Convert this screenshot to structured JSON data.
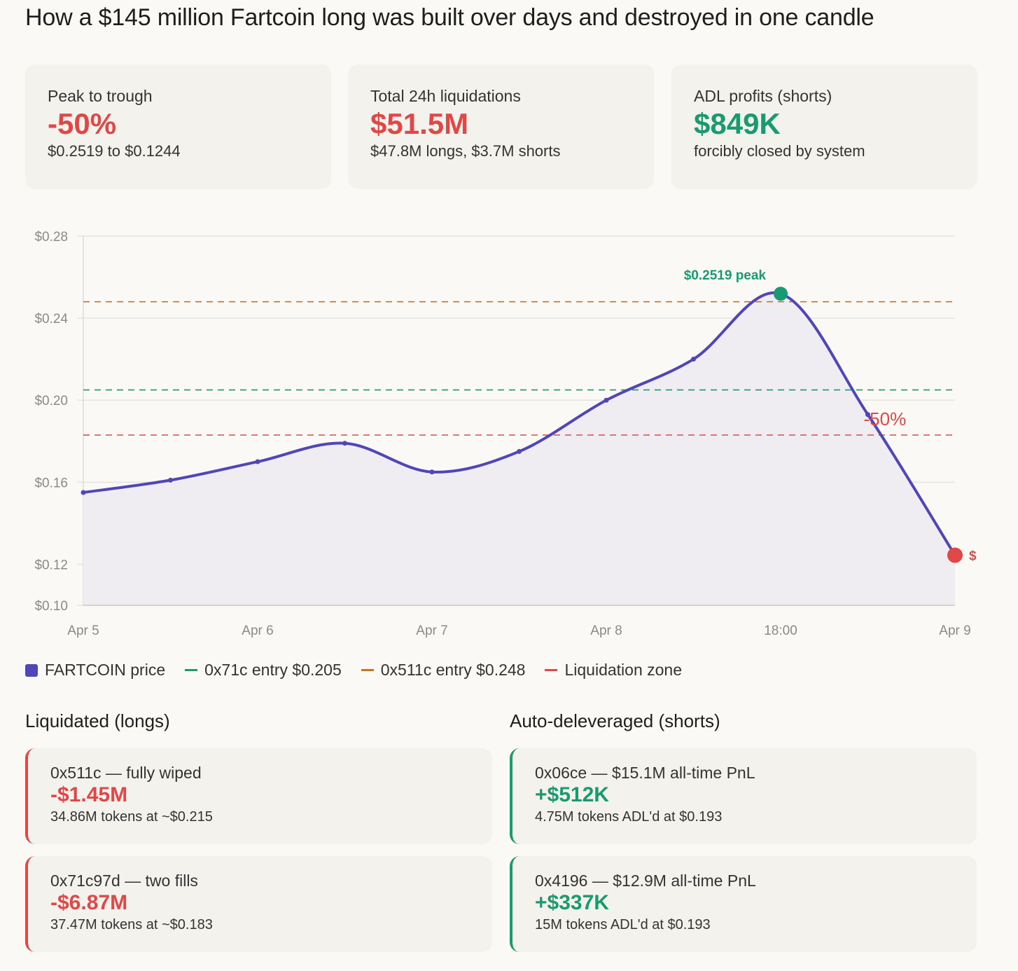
{
  "title": "How a $145 million Fartcoin long was built over days and destroyed in one candle",
  "stats": [
    {
      "label": "Peak to trough",
      "value": "-50%",
      "sub": "$0.2519 to $0.1244",
      "tone": "red"
    },
    {
      "label": "Total 24h liquidations",
      "value": "$51.5M",
      "sub": "$47.8M longs, $3.7M shorts",
      "tone": "red"
    },
    {
      "label": "ADL profits (shorts)",
      "value": "$849K",
      "sub": "forcibly closed by system",
      "tone": "green"
    }
  ],
  "colors": {
    "price": "#5046b8",
    "entry_71c": "#1a9a70",
    "entry_511c": "#c8731e",
    "liquidation": "#e04848",
    "fill": "#efedf1"
  },
  "chart_data": {
    "type": "area",
    "x": [
      "Apr 5",
      "",
      "Apr 6",
      "",
      "Apr 7",
      "",
      "Apr 8",
      "",
      "18:00",
      "",
      "Apr 9"
    ],
    "x_tick_labels": [
      "Apr 5",
      "Apr 6",
      "Apr 7",
      "Apr 8",
      "18:00",
      "Apr 9"
    ],
    "series": [
      {
        "name": "FARTCOIN price",
        "values": [
          0.155,
          0.161,
          0.17,
          0.179,
          0.165,
          0.175,
          0.2,
          0.22,
          0.2519,
          0.193,
          0.1244
        ]
      }
    ],
    "ylim": [
      0.1,
      0.28
    ],
    "y_ticks": [
      0.28,
      0.24,
      0.2,
      0.16,
      0.12,
      0.1
    ],
    "y_tick_labels": [
      "$0.28",
      "$0.24",
      "$0.20",
      "$0.16",
      "$0.12",
      "$0.10"
    ],
    "reference_lines": [
      {
        "name": "0x511c entry $0.248",
        "value": 0.248,
        "color": "#c8731e"
      },
      {
        "name": "0x71c entry $0.205",
        "value": 0.205,
        "color": "#1a9a70"
      },
      {
        "name": "Liquidation zone",
        "value": 0.183,
        "color": "#e04848"
      }
    ],
    "annotations": {
      "peak": "$0.2519 peak",
      "drop": "-50%",
      "trough": "$"
    },
    "grid": true,
    "legend": "bottom-left"
  },
  "legend": [
    "FARTCOIN price",
    "0x71c entry $0.205",
    "0x511c entry $0.248",
    "Liquidation zone"
  ],
  "liquidated": {
    "heading": "Liquidated (longs)",
    "cards": [
      {
        "label": "0x511c — fully wiped",
        "value": "-$1.45M",
        "sub": "34.86M tokens at ~$0.215"
      },
      {
        "label": "0x71c97d — two fills",
        "value": "-$6.87M",
        "sub": "37.47M tokens at ~$0.183"
      }
    ]
  },
  "adl": {
    "heading": "Auto-deleveraged (shorts)",
    "cards": [
      {
        "label": "0x06ce — $15.1M all-time PnL",
        "value": "+$512K",
        "sub": "4.75M tokens ADL'd at $0.193"
      },
      {
        "label": "0x4196 — $12.9M all-time PnL",
        "value": "+$337K",
        "sub": "15M tokens ADL'd at $0.193"
      }
    ]
  }
}
